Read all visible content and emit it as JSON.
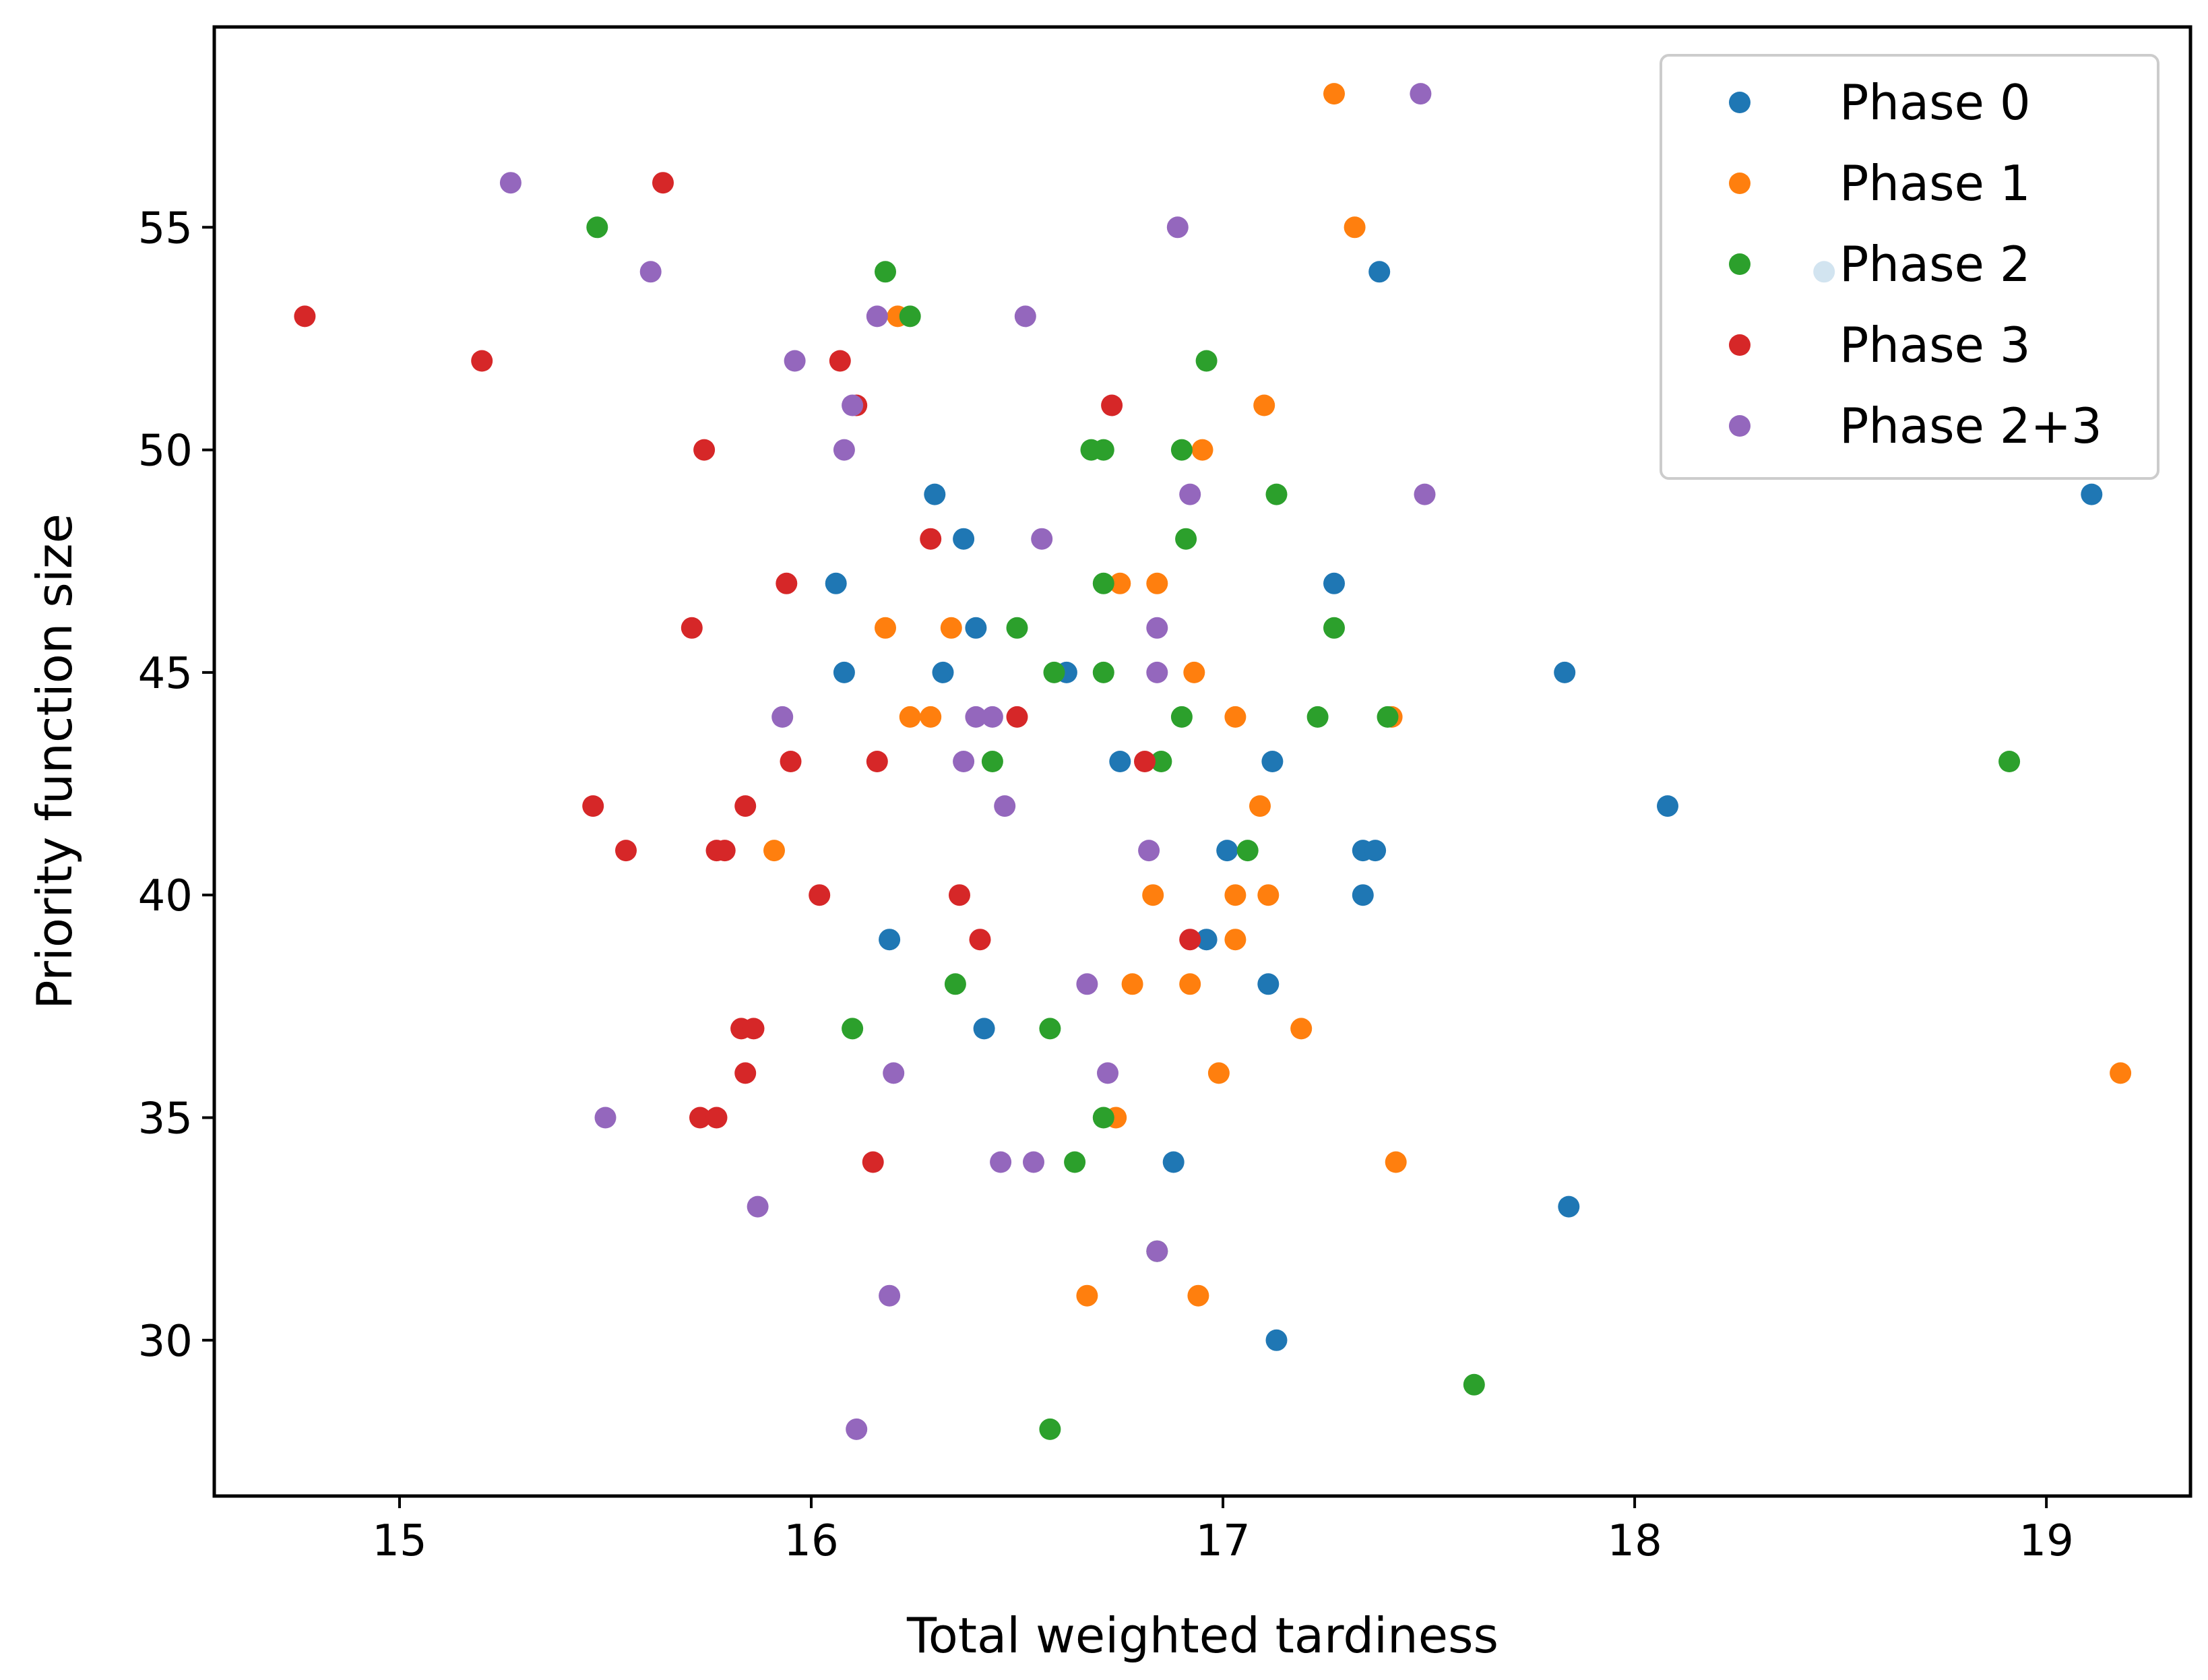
{
  "chart_data": {
    "type": "scatter",
    "title": "",
    "xlabel": "Total weighted tardiness",
    "ylabel": "Priority function size",
    "xlim": [
      14.55,
      19.35
    ],
    "ylim": [
      26.5,
      59.5
    ],
    "xticks": [
      15,
      16,
      17,
      18,
      19
    ],
    "yticks": [
      30,
      35,
      40,
      45,
      50,
      55
    ],
    "grid": false,
    "legend_position": "top-right",
    "series": [
      {
        "name": "Phase 0",
        "color": "#1f77b4",
        "points": [
          [
            16.3,
            49
          ],
          [
            16.37,
            48
          ],
          [
            16.06,
            47
          ],
          [
            16.4,
            46
          ],
          [
            16.08,
            45
          ],
          [
            16.32,
            45
          ],
          [
            16.62,
            45
          ],
          [
            16.75,
            43
          ],
          [
            17.12,
            43
          ],
          [
            17.38,
            54
          ],
          [
            17.27,
            47
          ],
          [
            17.83,
            45
          ],
          [
            17.01,
            41
          ],
          [
            17.34,
            41
          ],
          [
            17.37,
            41
          ],
          [
            17.34,
            40
          ],
          [
            16.96,
            39
          ],
          [
            16.19,
            39
          ],
          [
            17.11,
            38
          ],
          [
            16.42,
            37
          ],
          [
            16.88,
            34
          ],
          [
            17.84,
            33
          ],
          [
            17.13,
            30
          ],
          [
            18.08,
            42
          ],
          [
            18.46,
            54
          ],
          [
            19.11,
            49
          ]
        ]
      },
      {
        "name": "Phase 1",
        "color": "#ff7f0e",
        "points": [
          [
            17.27,
            58
          ],
          [
            17.32,
            55
          ],
          [
            16.21,
            53
          ],
          [
            17.1,
            51
          ],
          [
            16.95,
            50
          ],
          [
            16.75,
            47
          ],
          [
            16.84,
            47
          ],
          [
            16.18,
            46
          ],
          [
            16.34,
            46
          ],
          [
            16.93,
            45
          ],
          [
            16.24,
            44
          ],
          [
            16.29,
            44
          ],
          [
            17.03,
            44
          ],
          [
            17.41,
            44
          ],
          [
            15.91,
            41
          ],
          [
            17.09,
            42
          ],
          [
            16.83,
            40
          ],
          [
            17.03,
            40
          ],
          [
            17.11,
            40
          ],
          [
            17.03,
            39
          ],
          [
            16.78,
            38
          ],
          [
            16.92,
            38
          ],
          [
            17.19,
            37
          ],
          [
            16.99,
            36
          ],
          [
            16.74,
            35
          ],
          [
            17.42,
            34
          ],
          [
            16.67,
            31
          ],
          [
            16.94,
            31
          ],
          [
            19.18,
            36
          ]
        ]
      },
      {
        "name": "Phase 2",
        "color": "#2ca02c",
        "points": [
          [
            15.48,
            55
          ],
          [
            16.18,
            54
          ],
          [
            16.24,
            53
          ],
          [
            16.96,
            52
          ],
          [
            16.68,
            50
          ],
          [
            16.71,
            50
          ],
          [
            16.9,
            50
          ],
          [
            17.13,
            49
          ],
          [
            16.91,
            48
          ],
          [
            16.71,
            47
          ],
          [
            16.5,
            46
          ],
          [
            17.27,
            46
          ],
          [
            16.59,
            45
          ],
          [
            16.71,
            45
          ],
          [
            16.9,
            44
          ],
          [
            17.23,
            44
          ],
          [
            17.4,
            44
          ],
          [
            16.44,
            43
          ],
          [
            16.85,
            43
          ],
          [
            17.06,
            41
          ],
          [
            16.35,
            38
          ],
          [
            16.1,
            37
          ],
          [
            16.58,
            37
          ],
          [
            16.71,
            35
          ],
          [
            16.64,
            34
          ],
          [
            16.84,
            32
          ],
          [
            17.61,
            29
          ],
          [
            16.58,
            28
          ],
          [
            18.91,
            43
          ]
        ]
      },
      {
        "name": "Phase 3",
        "color": "#d62728",
        "points": [
          [
            14.77,
            53
          ],
          [
            15.2,
            52
          ],
          [
            15.64,
            56
          ],
          [
            16.07,
            52
          ],
          [
            16.11,
            51
          ],
          [
            15.74,
            50
          ],
          [
            16.73,
            51
          ],
          [
            16.29,
            48
          ],
          [
            15.94,
            47
          ],
          [
            15.71,
            46
          ],
          [
            15.95,
            43
          ],
          [
            16.16,
            43
          ],
          [
            16.5,
            44
          ],
          [
            16.81,
            43
          ],
          [
            15.47,
            42
          ],
          [
            15.84,
            42
          ],
          [
            15.55,
            41
          ],
          [
            15.77,
            41
          ],
          [
            15.79,
            41
          ],
          [
            16.02,
            40
          ],
          [
            16.36,
            40
          ],
          [
            16.41,
            39
          ],
          [
            16.92,
            39
          ],
          [
            15.83,
            37
          ],
          [
            15.86,
            37
          ],
          [
            15.84,
            36
          ],
          [
            15.73,
            35
          ],
          [
            15.77,
            35
          ],
          [
            16.15,
            34
          ]
        ]
      },
      {
        "name": "Phase 2+3",
        "color": "#9467bd",
        "points": [
          [
            15.27,
            56
          ],
          [
            15.61,
            54
          ],
          [
            16.16,
            53
          ],
          [
            16.52,
            53
          ],
          [
            15.96,
            52
          ],
          [
            16.1,
            51
          ],
          [
            16.08,
            50
          ],
          [
            16.89,
            55
          ],
          [
            16.92,
            49
          ],
          [
            16.56,
            48
          ],
          [
            16.84,
            46
          ],
          [
            16.84,
            45
          ],
          [
            15.93,
            44
          ],
          [
            16.4,
            44
          ],
          [
            16.44,
            44
          ],
          [
            16.37,
            43
          ],
          [
            16.47,
            42
          ],
          [
            16.82,
            41
          ],
          [
            16.67,
            38
          ],
          [
            16.72,
            36
          ],
          [
            16.2,
            36
          ],
          [
            15.5,
            35
          ],
          [
            16.46,
            34
          ],
          [
            16.54,
            34
          ],
          [
            15.87,
            33
          ],
          [
            16.84,
            32
          ],
          [
            16.19,
            31
          ],
          [
            16.11,
            28
          ],
          [
            17.48,
            58
          ],
          [
            17.49,
            49
          ]
        ]
      }
    ]
  }
}
